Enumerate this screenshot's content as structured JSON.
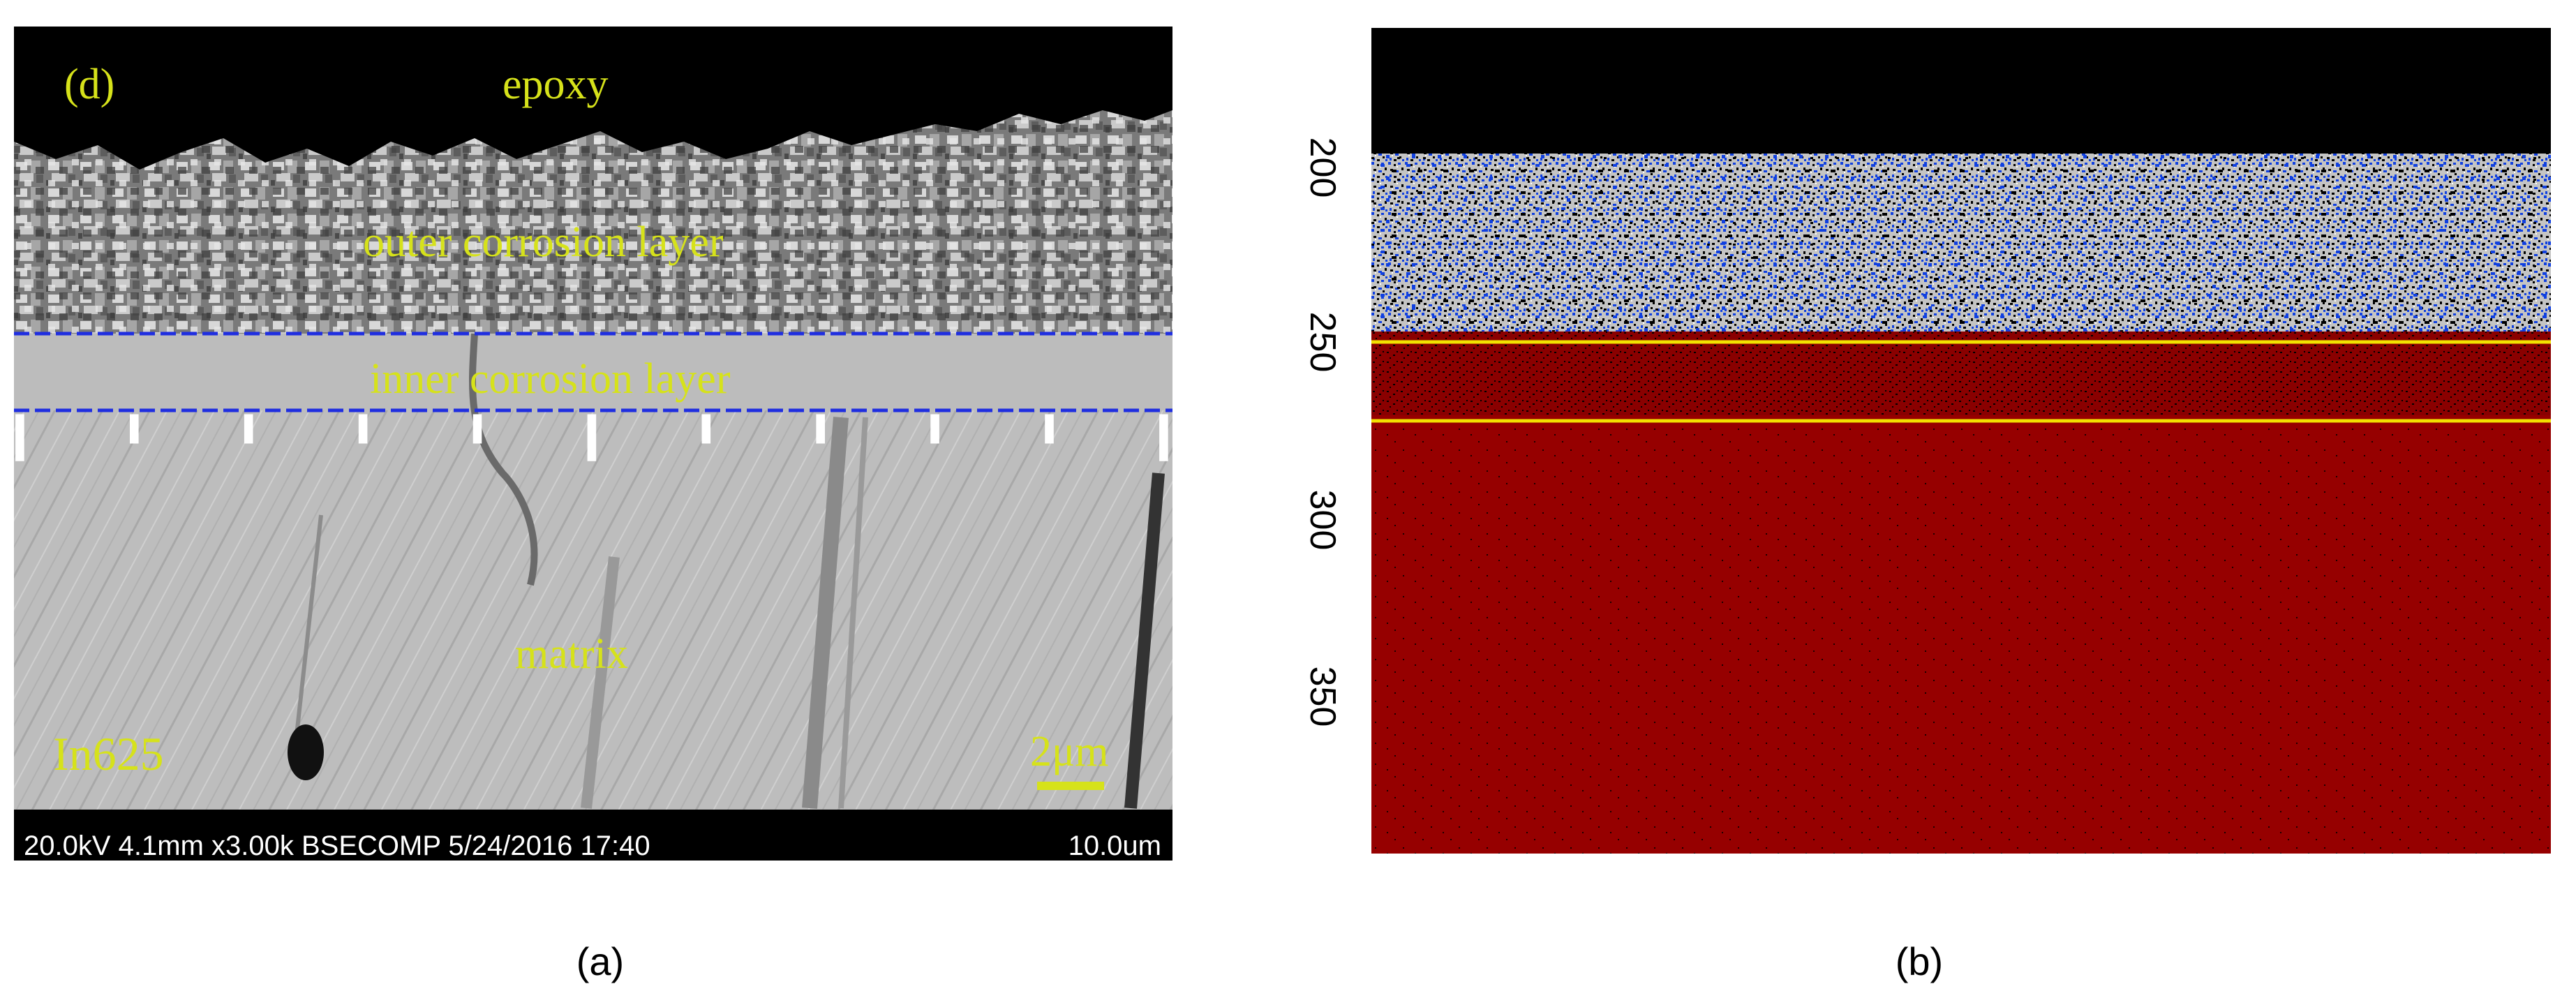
{
  "panel_a": {
    "corner_label": "(d)",
    "labels": {
      "epoxy": "epoxy",
      "outer_layer": "outer corrosion layer",
      "inner_layer": "inner corrosion layer",
      "matrix": "matrix",
      "alloy": "In625"
    },
    "scale_bar_label": "2μm",
    "info_bar_text": "20.0kV 4.1mm x3.00k BSECOMP 5/24/2016 17:40",
    "field_of_view": "10.0um",
    "colors": {
      "label_yellow": "#d6e21a",
      "boundary_blue": "#1f2ee0",
      "epoxy_black": "#000000"
    }
  },
  "panel_b": {
    "axis_ticks": [
      "200",
      "250",
      "300",
      "350"
    ],
    "colors": {
      "matrix_red": "#960000",
      "boundary_yellow": "#f2e100",
      "phase_blue": "#1040e0",
      "phase_gray": "#c0c0c0"
    }
  },
  "captions": {
    "a": "(a)",
    "b": "(b)"
  }
}
